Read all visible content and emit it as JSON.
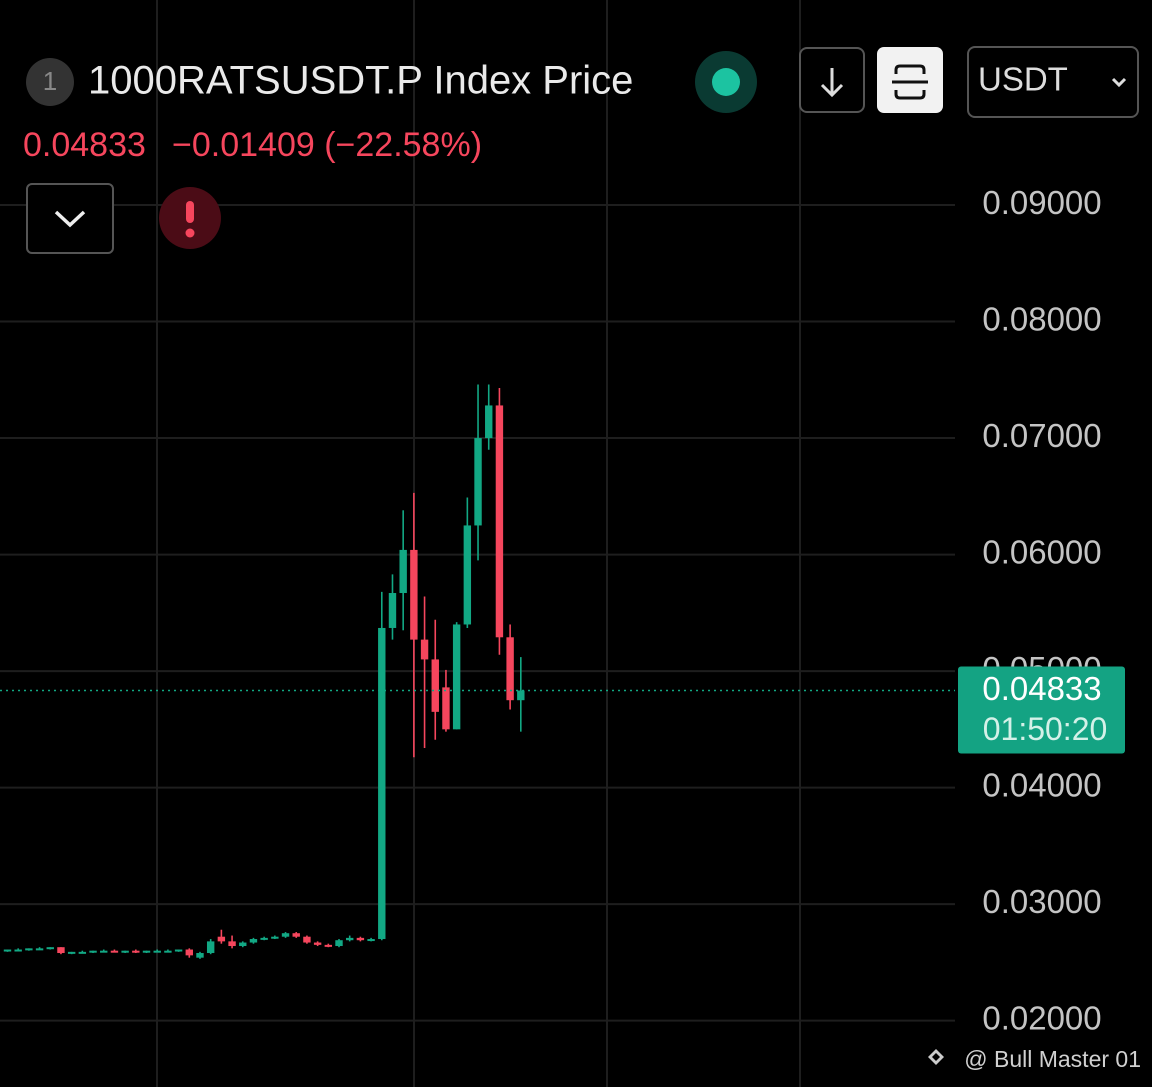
{
  "header": {
    "rank": "1",
    "title": "1000RATSUSDT.P Index Price",
    "change": "−0.01409 (−22.58%)",
    "quote": "USDT"
  },
  "chart_data": {
    "type": "candlestick",
    "ylim": [
      0.0143,
      0.1076
    ],
    "xlim": [
      -0.7,
      88.6
    ],
    "yticks": [
      {
        "value": 0.02,
        "label": "0.02000"
      },
      {
        "value": 0.03,
        "label": "0.03000"
      },
      {
        "value": 0.04,
        "label": "0.04000"
      },
      {
        "value": 0.05,
        "label": "0.05000"
      },
      {
        "value": 0.06,
        "label": "0.06000"
      },
      {
        "value": 0.07,
        "label": "0.07000"
      },
      {
        "value": 0.08,
        "label": "0.08000"
      },
      {
        "value": 0.09,
        "label": "0.09000"
      }
    ],
    "grid": true,
    "up_color": "#12a884",
    "down_color": "#f6465d",
    "open": [
      0.026,
      0.0261,
      0.0261,
      0.0262,
      0.0262,
      0.0263,
      0.0258,
      0.0259,
      0.0259,
      0.026,
      0.026,
      0.0259,
      0.026,
      0.0259,
      0.026,
      0.026,
      0.026,
      0.0261,
      0.0254,
      0.0258,
      0.0272,
      0.0268,
      0.0264,
      0.0267,
      0.027,
      0.0271,
      0.0272,
      0.0275,
      0.0272,
      0.0267,
      0.0265,
      0.0264,
      0.0269,
      0.0271,
      0.0269,
      0.027,
      0.0537,
      0.0567,
      0.0604,
      0.0527,
      0.051,
      0.0486,
      0.045,
      0.054,
      0.0625,
      0.07,
      0.0728,
      0.0529,
      0.0475
    ],
    "high": [
      0.0261,
      0.0262,
      0.0262,
      0.0263,
      0.0263,
      0.0263,
      0.0259,
      0.026,
      0.026,
      0.0261,
      0.0261,
      0.026,
      0.0261,
      0.026,
      0.0261,
      0.0261,
      0.0261,
      0.0262,
      0.0259,
      0.027,
      0.0278,
      0.0273,
      0.0268,
      0.0271,
      0.0272,
      0.0273,
      0.0276,
      0.0276,
      0.0273,
      0.0268,
      0.0266,
      0.027,
      0.0273,
      0.0272,
      0.0271,
      0.0568,
      0.0583,
      0.0638,
      0.0653,
      0.0564,
      0.0544,
      0.0501,
      0.0542,
      0.0649,
      0.0746,
      0.0746,
      0.0743,
      0.054,
      0.0512
    ],
    "low": [
      0.0259,
      0.026,
      0.026,
      0.0261,
      0.0261,
      0.0257,
      0.0257,
      0.0258,
      0.0258,
      0.0259,
      0.0259,
      0.0258,
      0.0258,
      0.0258,
      0.0259,
      0.0259,
      0.0259,
      0.0254,
      0.0253,
      0.0257,
      0.0266,
      0.0262,
      0.0263,
      0.0266,
      0.0269,
      0.027,
      0.0271,
      0.0271,
      0.0266,
      0.0264,
      0.0263,
      0.0263,
      0.0268,
      0.0268,
      0.0268,
      0.0269,
      0.0527,
      0.0535,
      0.0426,
      0.0434,
      0.0441,
      0.0448,
      0.045,
      0.0537,
      0.0595,
      0.069,
      0.0514,
      0.0467,
      0.0448
    ],
    "close": [
      0.0261,
      0.0261,
      0.0262,
      0.0262,
      0.0263,
      0.0258,
      0.0259,
      0.0259,
      0.026,
      0.026,
      0.0259,
      0.026,
      0.0259,
      0.026,
      0.026,
      0.026,
      0.0261,
      0.0256,
      0.0258,
      0.0268,
      0.0268,
      0.0264,
      0.0267,
      0.027,
      0.0271,
      0.0272,
      0.0275,
      0.0272,
      0.0267,
      0.0265,
      0.0264,
      0.0269,
      0.0271,
      0.0269,
      0.027,
      0.0537,
      0.0567,
      0.0604,
      0.0527,
      0.051,
      0.0465,
      0.045,
      0.054,
      0.0625,
      0.07,
      0.0728,
      0.0529,
      0.0475,
      0.04833
    ],
    "last_price": {
      "value": 0.04833,
      "label": "0.04833"
    },
    "countdown": "01:50:20",
    "watermark": "@ Bull Master 01"
  }
}
